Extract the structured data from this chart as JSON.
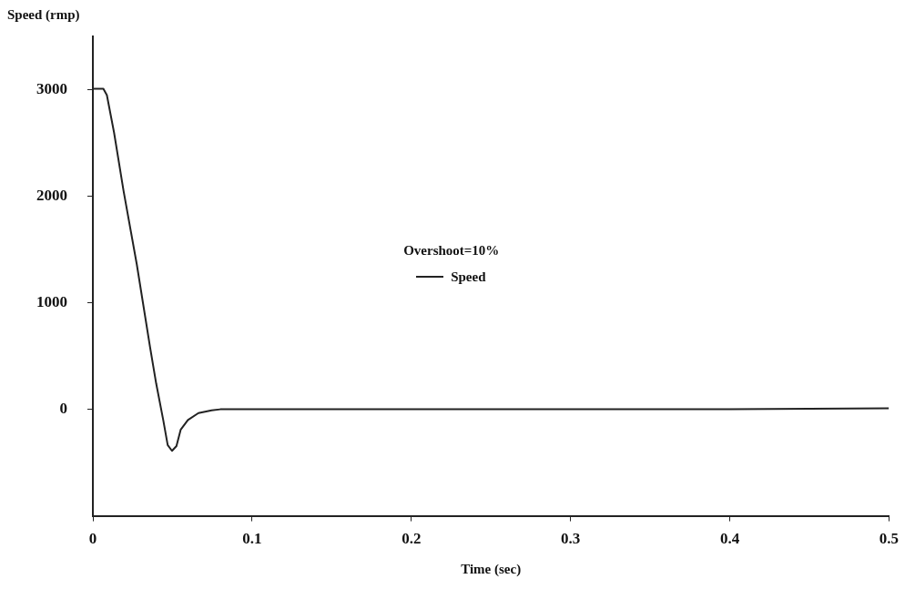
{
  "chart_data": {
    "type": "line",
    "xlabel": "Time (sec)",
    "ylabel": "Speed (rmp)",
    "legend_title": "Overshoot=10%",
    "legend": "center",
    "grid": false,
    "marker": "none",
    "line_style": "solid",
    "xlim": [
      0,
      0.5
    ],
    "xticks": [
      0,
      0.1,
      0.2,
      0.3,
      0.4,
      0.5
    ],
    "ylim": [
      -1000,
      3500
    ],
    "yticks": [
      0,
      1000,
      2000,
      3000
    ],
    "series": [
      {
        "name": "Speed",
        "color": "#222222",
        "x": [
          0,
          0.0066,
          0.0088,
          0.0133,
          0.0193,
          0.0276,
          0.0359,
          0.0398,
          0.0442,
          0.047,
          0.0497,
          0.0525,
          0.0552,
          0.0597,
          0.0663,
          0.0746,
          0.08,
          0.2,
          0.3,
          0.4,
          0.5
        ],
        "values": [
          3010,
          3010,
          2950,
          2600,
          2050,
          1360,
          585,
          240,
          -100,
          -335,
          -390,
          -345,
          -190,
          -100,
          -35,
          -10,
          0,
          0,
          0,
          0,
          10
        ]
      }
    ]
  }
}
